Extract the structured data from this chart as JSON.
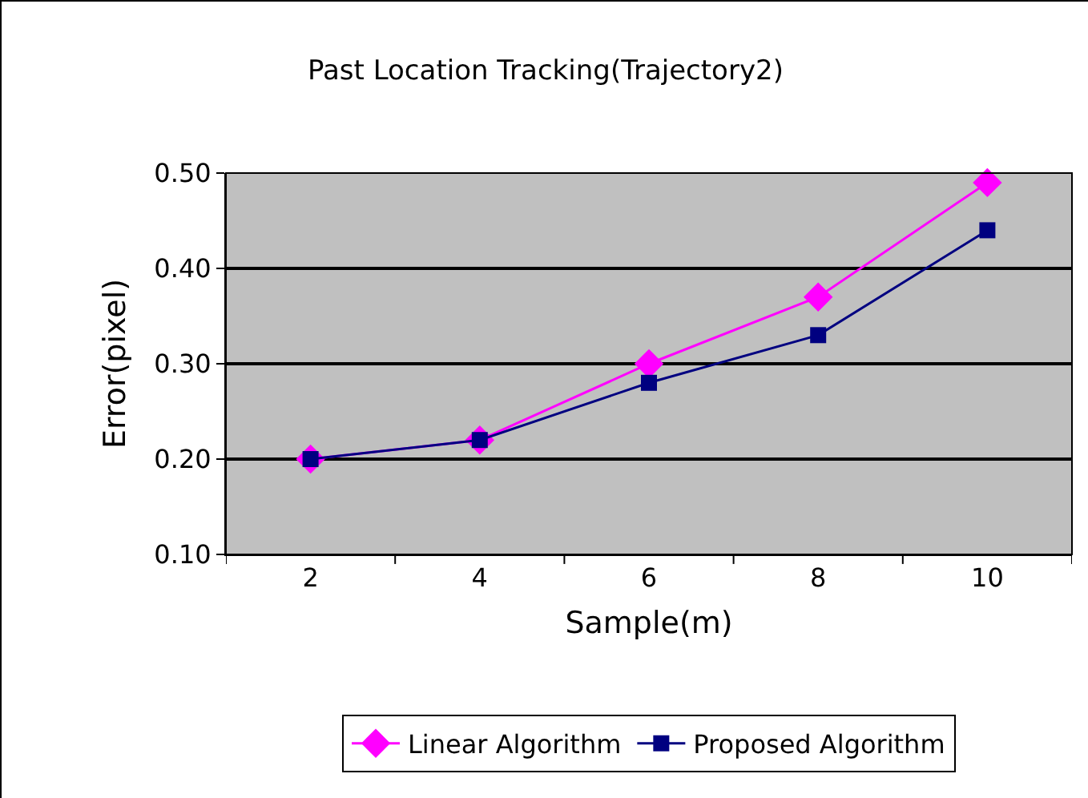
{
  "chart_data": {
    "type": "line",
    "title": "Past Location Tracking(Trajectory2)",
    "xlabel": "Sample(m)",
    "ylabel": "Error(pixel)",
    "categories": [
      "2",
      "4",
      "6",
      "8",
      "10"
    ],
    "series": [
      {
        "name": "Linear Algorithm",
        "color": "#ff00ff",
        "marker": "diamond",
        "values": [
          0.2,
          0.22,
          0.3,
          0.37,
          0.49
        ]
      },
      {
        "name": "Proposed Algorithm",
        "color": "#000080",
        "marker": "square",
        "values": [
          0.2,
          0.22,
          0.28,
          0.33,
          0.44
        ]
      }
    ],
    "ylim": [
      0.1,
      0.5
    ],
    "yticks": [
      {
        "value": 0.1,
        "label": "0.10"
      },
      {
        "value": 0.2,
        "label": "0.20"
      },
      {
        "value": 0.3,
        "label": "0.30"
      },
      {
        "value": 0.4,
        "label": "0.40"
      },
      {
        "value": 0.5,
        "label": "0.50"
      }
    ],
    "grid": "y",
    "legend": "bottom"
  }
}
